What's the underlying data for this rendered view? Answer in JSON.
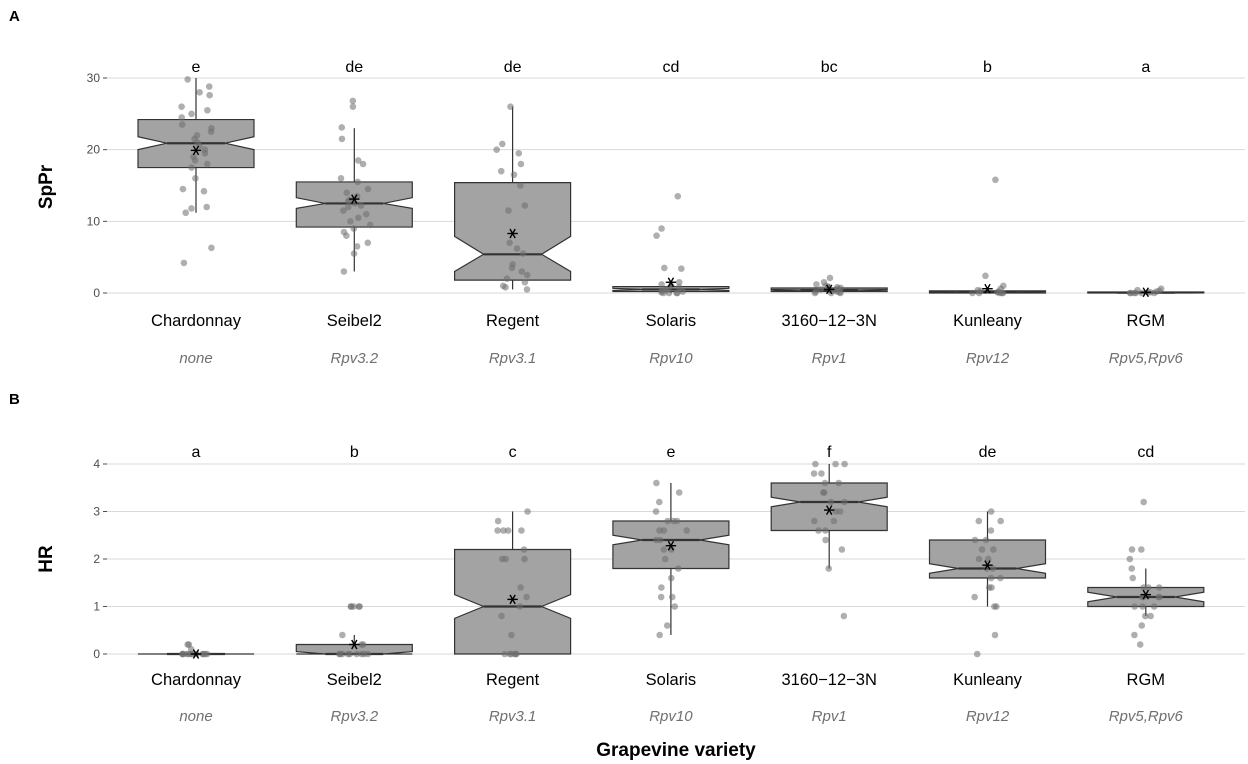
{
  "x_axis_label": "Grapevine variety",
  "chart_data": [
    {
      "panel": "A",
      "type": "boxplot",
      "ylabel": "SpPr",
      "ylim": [
        0,
        30
      ],
      "yticks": [
        0,
        10,
        20,
        30
      ],
      "grid": true,
      "categories": [
        "Chardonnay",
        "Seibel2",
        "Regent",
        "Solaris",
        "3160−12−3N",
        "Kunleany",
        "RGM"
      ],
      "genes": [
        "none",
        "Rpv3.2",
        "Rpv3.1",
        "Rpv10",
        "Rpv1",
        "Rpv12",
        "Rpv5,Rpv6"
      ],
      "sig_letters": [
        "e",
        "de",
        "de",
        "cd",
        "bc",
        "b",
        "a"
      ],
      "boxes": [
        {
          "min": 11.2,
          "q1": 17.5,
          "median": 20.9,
          "q3": 24.2,
          "max": 30,
          "mean": 19.9,
          "notch_lo": 20.0,
          "notch_hi": 21.8
        },
        {
          "min": 3.0,
          "q1": 9.2,
          "median": 12.5,
          "q3": 15.5,
          "max": 23.0,
          "mean": 13.1,
          "notch_lo": 11.8,
          "notch_hi": 13.3
        },
        {
          "min": 0.5,
          "q1": 1.8,
          "median": 5.4,
          "q3": 15.4,
          "max": 26.0,
          "mean": 8.3,
          "notch_lo": 3.0,
          "notch_hi": 7.9
        },
        {
          "min": 0.0,
          "q1": 0.2,
          "median": 0.5,
          "q3": 0.9,
          "max": 1.5,
          "mean": 1.5,
          "notch_lo": 0.35,
          "notch_hi": 0.65
        },
        {
          "min": 0.0,
          "q1": 0.2,
          "median": 0.4,
          "q3": 0.7,
          "max": 1.2,
          "mean": 0.5,
          "notch_lo": 0.3,
          "notch_hi": 0.5
        },
        {
          "min": 0.0,
          "q1": 0.0,
          "median": 0.1,
          "q3": 0.3,
          "max": 0.6,
          "mean": 0.6,
          "notch_lo": 0.05,
          "notch_hi": 0.15
        },
        {
          "min": 0.0,
          "q1": 0.0,
          "median": 0.05,
          "q3": 0.15,
          "max": 0.3,
          "mean": 0.1,
          "notch_lo": 0.02,
          "notch_hi": 0.08
        }
      ],
      "points": [
        [
          29.8,
          28.8,
          28.0,
          27.6,
          26.0,
          25.5,
          25.0,
          24.5,
          23.5,
          23.0,
          22.5,
          22.0,
          21.5,
          21.0,
          20.5,
          20.0,
          19.5,
          19.0,
          18.5,
          18.0,
          17.5,
          16.0,
          14.5,
          14.2,
          12.0,
          11.8,
          11.2,
          6.3,
          4.2
        ],
        [
          26.8,
          26.0,
          23.1,
          21.5,
          18.5,
          18.0,
          16.0,
          15.5,
          14.5,
          14.0,
          13.5,
          13.0,
          12.8,
          12.5,
          12.2,
          12.0,
          11.5,
          11.0,
          10.5,
          10.0,
          9.5,
          9.0,
          8.5,
          8.0,
          7.0,
          6.5,
          5.5,
          3.0
        ],
        [
          26.0,
          20.8,
          20.0,
          19.5,
          18.0,
          17.0,
          16.5,
          15.0,
          12.2,
          11.5,
          7.0,
          6.2,
          5.5,
          4.0,
          3.5,
          3.0,
          2.5,
          2.0,
          1.5,
          1.0,
          0.8,
          0.5
        ],
        [
          13.5,
          9.0,
          8.0,
          3.5,
          3.4,
          1.5,
          1.2,
          1.0,
          0.8,
          0.6,
          0.5,
          0.4,
          0.3,
          0.2,
          0.1,
          0.0,
          0.0,
          0.0,
          0.0
        ],
        [
          2.1,
          1.5,
          1.2,
          1.0,
          0.9,
          0.8,
          0.7,
          0.6,
          0.5,
          0.4,
          0.3,
          0.2,
          0.2,
          0.1,
          0.0,
          0.0,
          0.0
        ],
        [
          15.8,
          2.4,
          1.0,
          0.6,
          0.4,
          0.3,
          0.2,
          0.1,
          0.0,
          0.0,
          0.0,
          0.0,
          0.0
        ],
        [
          0.6,
          0.4,
          0.3,
          0.2,
          0.1,
          0.1,
          0.0,
          0.0,
          0.0,
          0.0,
          0.0,
          0.0
        ]
      ]
    },
    {
      "panel": "B",
      "type": "boxplot",
      "ylabel": "HR",
      "ylim": [
        0,
        4
      ],
      "yticks": [
        0,
        1,
        2,
        3,
        4
      ],
      "grid": true,
      "categories": [
        "Chardonnay",
        "Seibel2",
        "Regent",
        "Solaris",
        "3160−12−3N",
        "Kunleany",
        "RGM"
      ],
      "genes": [
        "none",
        "Rpv3.2",
        "Rpv3.1",
        "Rpv10",
        "Rpv1",
        "Rpv12",
        "Rpv5,Rpv6"
      ],
      "sig_letters": [
        "a",
        "b",
        "c",
        "e",
        "f",
        "de",
        "cd"
      ],
      "boxes": [
        {
          "min": 0,
          "q1": 0,
          "median": 0,
          "q3": 0,
          "max": 0,
          "mean": 0.0,
          "notch_lo": 0,
          "notch_hi": 0
        },
        {
          "min": 0,
          "q1": 0,
          "median": 0,
          "q3": 0.2,
          "max": 0.4,
          "mean": 0.2,
          "notch_lo": 0,
          "notch_hi": 0.05
        },
        {
          "min": 0,
          "q1": 0,
          "median": 1.0,
          "q3": 2.2,
          "max": 3.0,
          "mean": 1.15,
          "notch_lo": 0.75,
          "notch_hi": 1.25
        },
        {
          "min": 0.4,
          "q1": 1.8,
          "median": 2.4,
          "q3": 2.8,
          "max": 3.6,
          "mean": 2.28,
          "notch_lo": 2.3,
          "notch_hi": 2.5
        },
        {
          "min": 1.8,
          "q1": 2.6,
          "median": 3.2,
          "q3": 3.6,
          "max": 4.0,
          "mean": 3.03,
          "notch_lo": 3.1,
          "notch_hi": 3.3
        },
        {
          "min": 1.0,
          "q1": 1.6,
          "median": 1.8,
          "q3": 2.4,
          "max": 3.0,
          "mean": 1.87,
          "notch_lo": 1.7,
          "notch_hi": 1.9
        },
        {
          "min": 0.8,
          "q1": 1.0,
          "median": 1.2,
          "q3": 1.4,
          "max": 1.8,
          "mean": 1.25,
          "notch_lo": 1.1,
          "notch_hi": 1.3
        }
      ],
      "points": [
        [
          0.2,
          0.2,
          0.1,
          0.0,
          0.0,
          0.0,
          0.0,
          0.0,
          0.0,
          0.0,
          0.0,
          0.0,
          0.0,
          0.0,
          0.0
        ],
        [
          1.0,
          1.0,
          1.0,
          1.0,
          1.0,
          0.4,
          0.2,
          0.2,
          0.0,
          0.0,
          0.0,
          0.0,
          0.0,
          0.0,
          0.0,
          0.0,
          0.0
        ],
        [
          3.0,
          2.8,
          2.6,
          2.6,
          2.6,
          2.6,
          2.2,
          2.0,
          2.0,
          2.0,
          1.4,
          1.2,
          1.0,
          0.8,
          0.4,
          0.0,
          0.0,
          0.0,
          0.0,
          0.0,
          0.0
        ],
        [
          3.6,
          3.4,
          3.2,
          3.0,
          2.8,
          2.8,
          2.8,
          2.6,
          2.6,
          2.6,
          2.4,
          2.4,
          2.2,
          2.2,
          2.0,
          1.8,
          1.6,
          1.4,
          1.2,
          1.2,
          1.0,
          0.6,
          0.4
        ],
        [
          4.0,
          4.0,
          4.0,
          3.8,
          3.8,
          3.6,
          3.6,
          3.4,
          3.4,
          3.2,
          3.2,
          3.0,
          3.0,
          2.8,
          2.8,
          2.6,
          2.6,
          2.4,
          2.2,
          1.8,
          0.8
        ],
        [
          3.0,
          2.8,
          2.8,
          2.6,
          2.4,
          2.4,
          2.2,
          2.2,
          2.0,
          2.0,
          1.8,
          1.8,
          1.6,
          1.6,
          1.4,
          1.4,
          1.2,
          1.0,
          1.0,
          0.4,
          0.0
        ],
        [
          3.2,
          2.2,
          2.2,
          2.0,
          1.8,
          1.6,
          1.4,
          1.4,
          1.4,
          1.2,
          1.2,
          1.2,
          1.2,
          1.0,
          1.0,
          1.0,
          0.8,
          0.8,
          0.6,
          0.4,
          0.2
        ]
      ]
    }
  ]
}
